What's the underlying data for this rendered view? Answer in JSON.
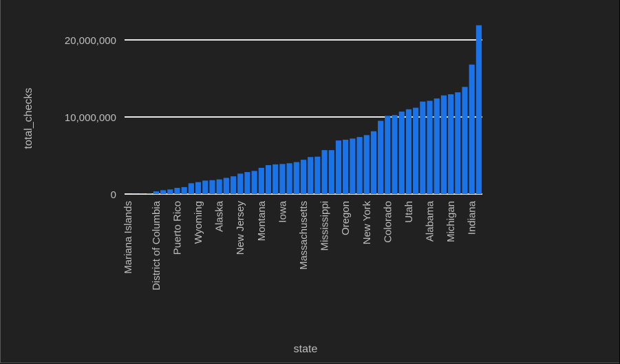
{
  "chart_data": {
    "type": "bar",
    "xlabel": "state",
    "ylabel": "total_checks",
    "ylim": [
      0,
      21000000
    ],
    "yticks": [
      0,
      10000000,
      20000000
    ],
    "ytick_labels": [
      "0",
      "10,000,000",
      "20,000,000"
    ],
    "grid": "horizontal",
    "bar_color": "#1a73e8",
    "categories": [
      "Mariana Islands",
      "",
      "",
      "",
      "District of Columbia",
      "",
      "",
      "Puerto Rico",
      "",
      "",
      "Wyoming",
      "",
      "",
      "Alaska",
      "",
      "",
      "New Jersey",
      "",
      "",
      "Montana",
      "",
      "",
      "Iowa",
      "",
      "",
      "Massachusetts",
      "",
      "",
      "Mississippi",
      "",
      "",
      "Oregon",
      "",
      "",
      "New York",
      "",
      "",
      "Colorado",
      "",
      "",
      "Utah",
      "",
      "",
      "Alabama",
      "",
      "",
      "Michigan",
      "",
      "",
      "Indiana",
      ""
    ],
    "values": [
      0,
      10000,
      20000,
      40000,
      350000,
      500000,
      600000,
      800000,
      900000,
      1400000,
      1550000,
      1750000,
      1800000,
      1900000,
      2100000,
      2300000,
      2650000,
      2850000,
      3000000,
      3400000,
      3750000,
      3850000,
      3900000,
      4000000,
      4150000,
      4450000,
      4800000,
      4850000,
      5700000,
      5700000,
      6950000,
      7050000,
      7200000,
      7400000,
      7650000,
      8150000,
      9500000,
      10150000,
      10250000,
      10700000,
      11000000,
      11200000,
      12000000,
      12100000,
      12400000,
      12800000,
      12950000,
      13200000,
      13900000,
      16800000,
      21900000
    ]
  }
}
